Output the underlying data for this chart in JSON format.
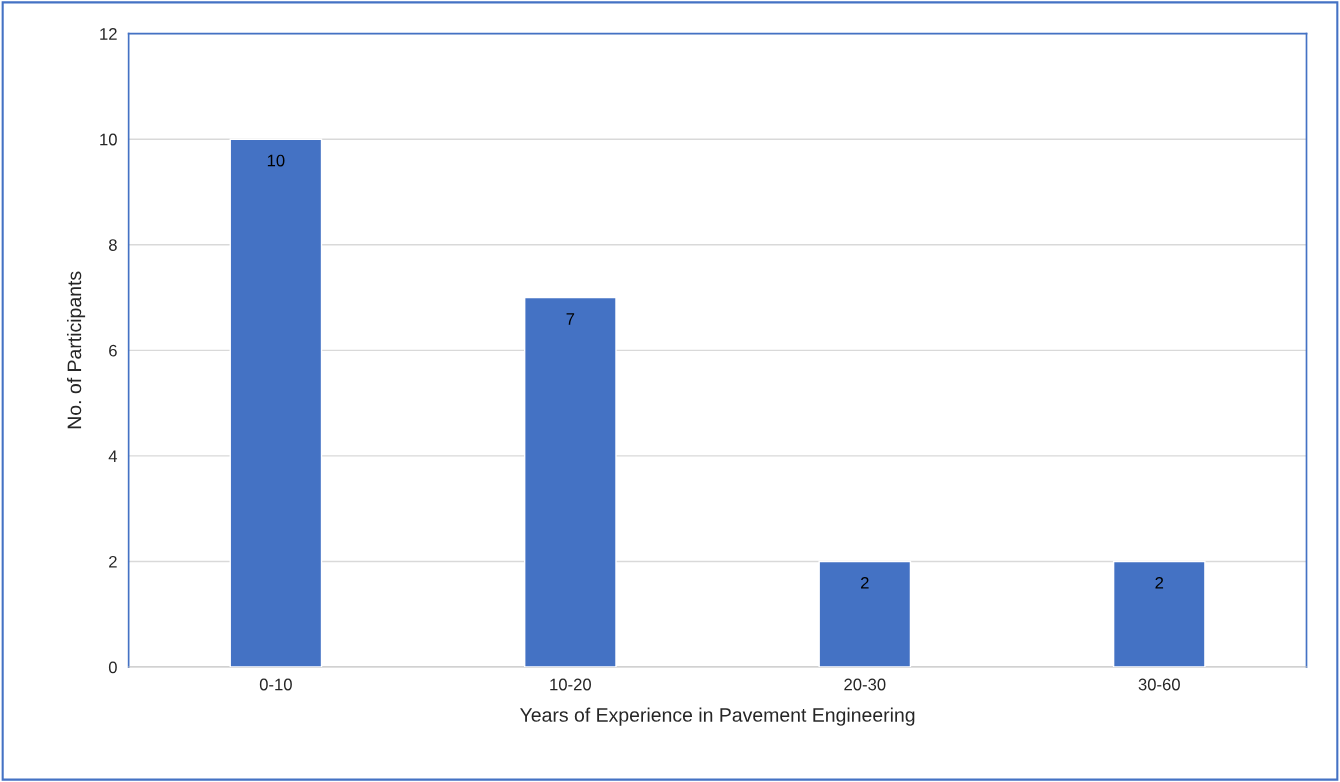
{
  "chart_data": {
    "type": "bar",
    "xlabel": "Years of Experience in Pavement Engineering",
    "ylabel": "No. of Participants",
    "categories": [
      "0-10",
      "10-20",
      "20-30",
      "30-60"
    ],
    "values": [
      10,
      7,
      2,
      2
    ],
    "color": "#4472c4",
    "ylim": [
      0,
      12
    ],
    "yticks": [
      0,
      2,
      4,
      6,
      8,
      10,
      12
    ],
    "grid": "y",
    "data_labels": true,
    "legend": false
  }
}
